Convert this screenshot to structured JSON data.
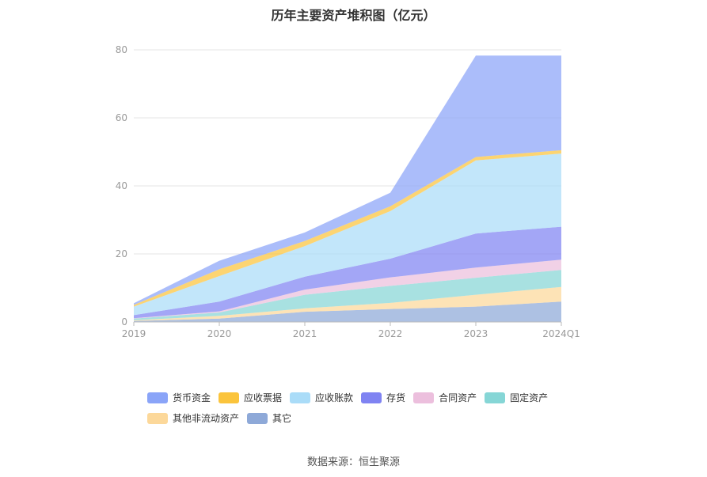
{
  "chart_data": {
    "type": "area",
    "stacked": true,
    "title": "历年主要资产堆积图（亿元）",
    "xlabel": "",
    "ylabel": "",
    "x": [
      "2019",
      "2020",
      "2021",
      "2022",
      "2023",
      "2024Q1"
    ],
    "ylim": [
      0,
      80
    ],
    "yticks": [
      0,
      20,
      40,
      60,
      80
    ],
    "grid": true,
    "legend_position": "bottom",
    "series": [
      {
        "name": "其它",
        "color": "#8ea9d8",
        "values": [
          0.3,
          1.0,
          3.0,
          3.8,
          4.5,
          6.0
        ]
      },
      {
        "name": "其他非流动资产",
        "color": "#fcd89a",
        "values": [
          0.2,
          0.8,
          1.0,
          1.8,
          3.5,
          4.3
        ]
      },
      {
        "name": "固定资产",
        "color": "#86d6d6",
        "values": [
          0.5,
          1.0,
          4.0,
          5.0,
          5.0,
          5.0
        ]
      },
      {
        "name": "合同资产",
        "color": "#ecbfdd",
        "values": [
          0.1,
          0.3,
          1.5,
          2.5,
          3.0,
          3.0
        ]
      },
      {
        "name": "存货",
        "color": "#7f83f2",
        "values": [
          0.9,
          2.9,
          3.8,
          5.5,
          10.0,
          9.7
        ]
      },
      {
        "name": "应收账款",
        "color": "#aadcf8",
        "values": [
          2.5,
          7.5,
          9.0,
          14.0,
          21.5,
          21.5
        ]
      },
      {
        "name": "应收票据",
        "color": "#fbc43c",
        "values": [
          0.5,
          2.0,
          1.5,
          1.4,
          1.0,
          1.0
        ]
      },
      {
        "name": "货币资金",
        "color": "#8aa4f8",
        "values": [
          0.5,
          2.5,
          2.5,
          4.0,
          29.8,
          27.8
        ]
      }
    ],
    "legend_order": [
      "货币资金",
      "应收票据",
      "应收账款",
      "存货",
      "合同资产",
      "固定资产",
      "其他非流动资产",
      "其它"
    ]
  },
  "source_text": "数据来源：恒生聚源"
}
